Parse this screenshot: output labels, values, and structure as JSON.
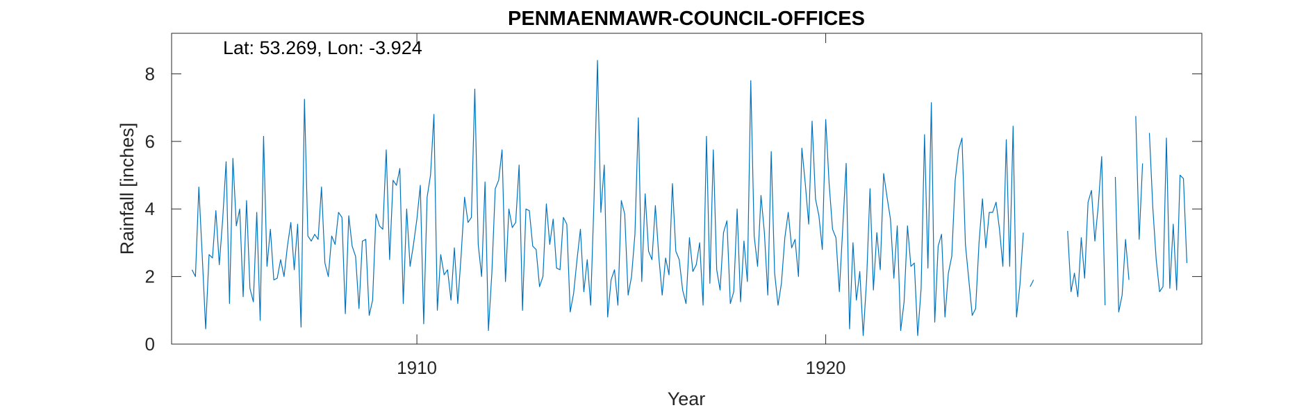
{
  "chart_data": {
    "type": "line",
    "title": "PENMAENMAWR-COUNCIL-OFFICES",
    "annotation": "Lat: 53.269, Lon: -3.924",
    "xlabel": "Year",
    "ylabel": "Rainfall [inches]",
    "xlim": [
      1904.0,
      1929.2
    ],
    "ylim": [
      0,
      9.2
    ],
    "xticks": [
      1910,
      1920
    ],
    "xtick_labels": [
      "1910",
      "1920"
    ],
    "yticks": [
      0,
      2,
      4,
      6,
      8
    ],
    "ytick_labels": [
      "0",
      "2",
      "4",
      "6",
      "8"
    ],
    "grid": false,
    "line_color": "#0072BD",
    "series": [
      {
        "start": "1904-07",
        "step": "month",
        "values": [
          2.2,
          2.0,
          4.65,
          2.6,
          0.45,
          2.65,
          2.55,
          3.95,
          2.35,
          3.7,
          5.4,
          1.2,
          5.5,
          3.5,
          4.0,
          1.4,
          4.25,
          1.65,
          1.25,
          3.9,
          0.7,
          6.15,
          2.3,
          3.4,
          1.9,
          1.95,
          2.5,
          2.0,
          2.9,
          3.6,
          2.2,
          3.55,
          0.5,
          7.25,
          3.2,
          3.05,
          3.25,
          3.1,
          4.65,
          2.4,
          2.0,
          3.2,
          2.95,
          3.9,
          3.75,
          0.9,
          3.8,
          2.9,
          2.6,
          1.05,
          3.05,
          3.1,
          0.85,
          1.3,
          3.85,
          3.5,
          3.4,
          5.75,
          2.5,
          4.85,
          4.7,
          5.2,
          1.2,
          4.0,
          2.3,
          2.95,
          3.7,
          4.7,
          0.6,
          4.35,
          5.0,
          6.8,
          1.0,
          2.65,
          2.05,
          2.2,
          1.3,
          2.85,
          1.2,
          2.65,
          4.35,
          3.6,
          3.75,
          7.55,
          2.95,
          2.0,
          4.8,
          0.4,
          2.1,
          4.6,
          4.85,
          5.75,
          1.85,
          4.0,
          3.45,
          3.6,
          5.3,
          1.0,
          4.0,
          3.95,
          2.9,
          2.8,
          1.7,
          2.0,
          4.15,
          2.95,
          3.7,
          2.25,
          2.2,
          3.75,
          3.55,
          0.95,
          1.5,
          2.5,
          3.4,
          1.55,
          2.5,
          1.15,
          4.3,
          8.4,
          3.9,
          5.3,
          0.8,
          1.9,
          2.2,
          1.15,
          4.25,
          3.85,
          1.45,
          2.0,
          3.25,
          6.7,
          1.85,
          4.45,
          2.75,
          2.5,
          4.1,
          2.6,
          1.45,
          2.55,
          2.05,
          4.75,
          2.75,
          2.5,
          1.6,
          1.2,
          3.15,
          2.15,
          2.35,
          3.0,
          1.15,
          6.15,
          1.8,
          5.75,
          2.2,
          1.6,
          3.3,
          3.65,
          1.2,
          1.55,
          4.0,
          1.25,
          3.05,
          1.85,
          7.8,
          3.2,
          2.3,
          4.4,
          3.3,
          1.45,
          5.7,
          2.1,
          1.15,
          1.8,
          3.15,
          3.9,
          2.85,
          3.1,
          2.0,
          5.8,
          4.75,
          3.55,
          6.6,
          4.3,
          3.8,
          2.8,
          6.65,
          4.75,
          3.4,
          3.15,
          1.55,
          3.45,
          5.35,
          0.45,
          3.0,
          1.3,
          2.15,
          0.25,
          1.9,
          4.6,
          1.6,
          3.3,
          2.2,
          5.05,
          4.35,
          3.7,
          1.95,
          3.5,
          0.4,
          1.25,
          3.5,
          2.3,
          2.4,
          0.25,
          1.65,
          6.2,
          2.25,
          7.15,
          0.65,
          2.9,
          3.25,
          0.8,
          2.1,
          2.6,
          4.85,
          5.75,
          6.1,
          2.95,
          1.9,
          0.85,
          1.05,
          3.0,
          4.3,
          2.85,
          3.9,
          3.9,
          4.2,
          3.4,
          2.3,
          6.05,
          2.3,
          6.45,
          0.8,
          1.75,
          3.3,
          null,
          1.7,
          1.9,
          null,
          null,
          null,
          null,
          null,
          null,
          null,
          null,
          null,
          3.35,
          1.55,
          2.1,
          1.4,
          3.15,
          1.95,
          4.2,
          4.55,
          3.05,
          4.1,
          5.55,
          1.15,
          null,
          null,
          4.95,
          0.95,
          1.45,
          3.1,
          1.9,
          null,
          6.75,
          3.1,
          5.35,
          null,
          6.25,
          4.05,
          2.5,
          1.55,
          1.7,
          6.1,
          1.65,
          3.55,
          1.6,
          5.0,
          4.9,
          2.4
        ]
      }
    ]
  }
}
